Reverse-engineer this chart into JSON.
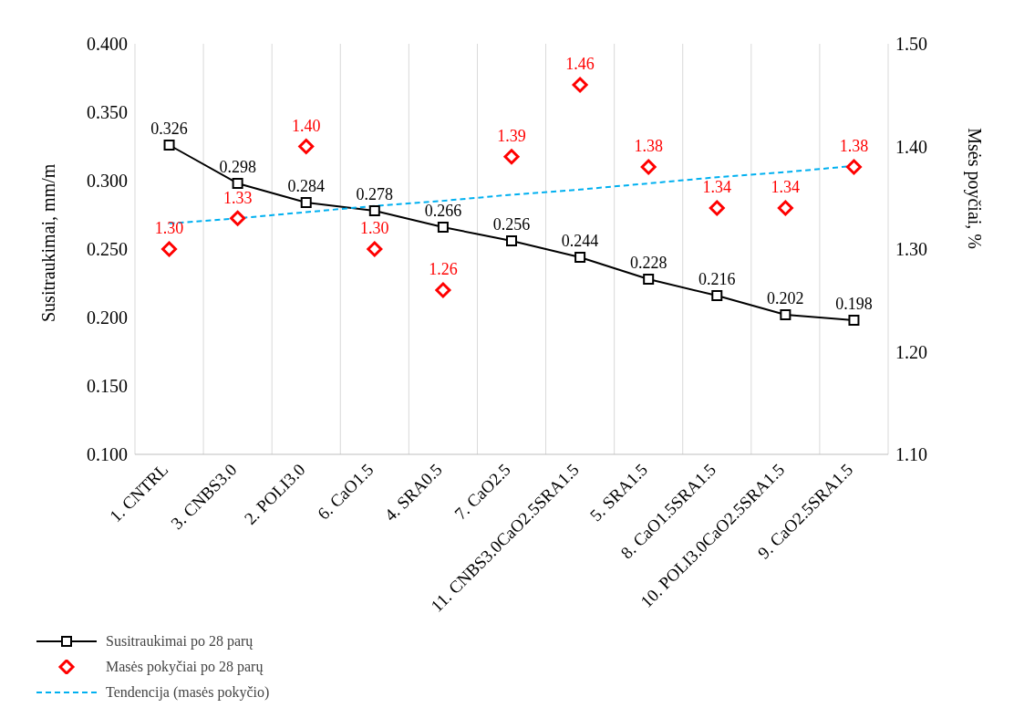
{
  "chart_data": {
    "type": "line",
    "categories": [
      "1. CNTRL",
      "3. CNBS3.0",
      "2. POLI3.0",
      "6. CaO1.5",
      "4. SRA0.5",
      "7. CaO2.5",
      "11. CNBS3.0CaO2.5SRA1.5",
      "5. SRA1.5",
      "8. CaO1.5SRA1.5",
      "10. POLI3.0CaO2.5SRA1.5",
      "9. CaO2.5SRA1.5"
    ],
    "ylabel": "Susitraukimai, mm/m",
    "y2label": "Msės poyčiai, %",
    "ylim": [
      0.1,
      0.4
    ],
    "yticks": [
      {
        "value": 0.1,
        "label": "0.100"
      },
      {
        "value": 0.15,
        "label": "0.150"
      },
      {
        "value": 0.2,
        "label": "0.200"
      },
      {
        "value": 0.25,
        "label": "0.250"
      },
      {
        "value": 0.3,
        "label": "0.300"
      },
      {
        "value": 0.35,
        "label": "0.350"
      },
      {
        "value": 0.4,
        "label": "0.400"
      }
    ],
    "y2lim": [
      1.1,
      1.5
    ],
    "y2ticks": [
      {
        "value": 1.1,
        "label": "1.10"
      },
      {
        "value": 1.2,
        "label": "1.20"
      },
      {
        "value": 1.3,
        "label": "1.30"
      },
      {
        "value": 1.4,
        "label": "1.40"
      },
      {
        "value": 1.5,
        "label": "1.50"
      }
    ],
    "grid": true,
    "legend": "bottom left",
    "series": [
      {
        "name": "Susitraukimai po 28 parų",
        "color": "#000000",
        "marker": "square",
        "line_style": "solid",
        "values": [
          0.326,
          0.298,
          0.284,
          0.278,
          0.266,
          0.256,
          0.244,
          0.228,
          0.216,
          0.202,
          0.198
        ],
        "value_labels": [
          "0.326",
          "0.298",
          "0.284",
          "0.278",
          "0.266",
          "0.256",
          "0.244",
          "0.228",
          "0.216",
          "0.202",
          "0.198"
        ]
      },
      {
        "name": "Masės pokyčiai po 28 parų",
        "type": "scatter",
        "axis": "y2",
        "color": "#ff0000",
        "marker": "diamond",
        "values": [
          1.3,
          1.33,
          1.4,
          1.3,
          1.26,
          1.39,
          1.46,
          1.38,
          1.34,
          1.34,
          1.38
        ],
        "value_labels": [
          "1.30",
          "1.33",
          "1.40",
          "1.30",
          "1.26",
          "1.39",
          "1.46",
          "1.38",
          "1.34",
          "1.34",
          "1.38"
        ]
      },
      {
        "name": "Tendencija (masės pokyčio)",
        "type": "line",
        "axis": "y2",
        "color": "#00b0f0",
        "marker": "none",
        "line_style": "dashed",
        "values": [
          1.325,
          1.33,
          1.336,
          1.342,
          1.347,
          1.353,
          1.358,
          1.364,
          1.37,
          1.375,
          1.381
        ]
      }
    ]
  }
}
